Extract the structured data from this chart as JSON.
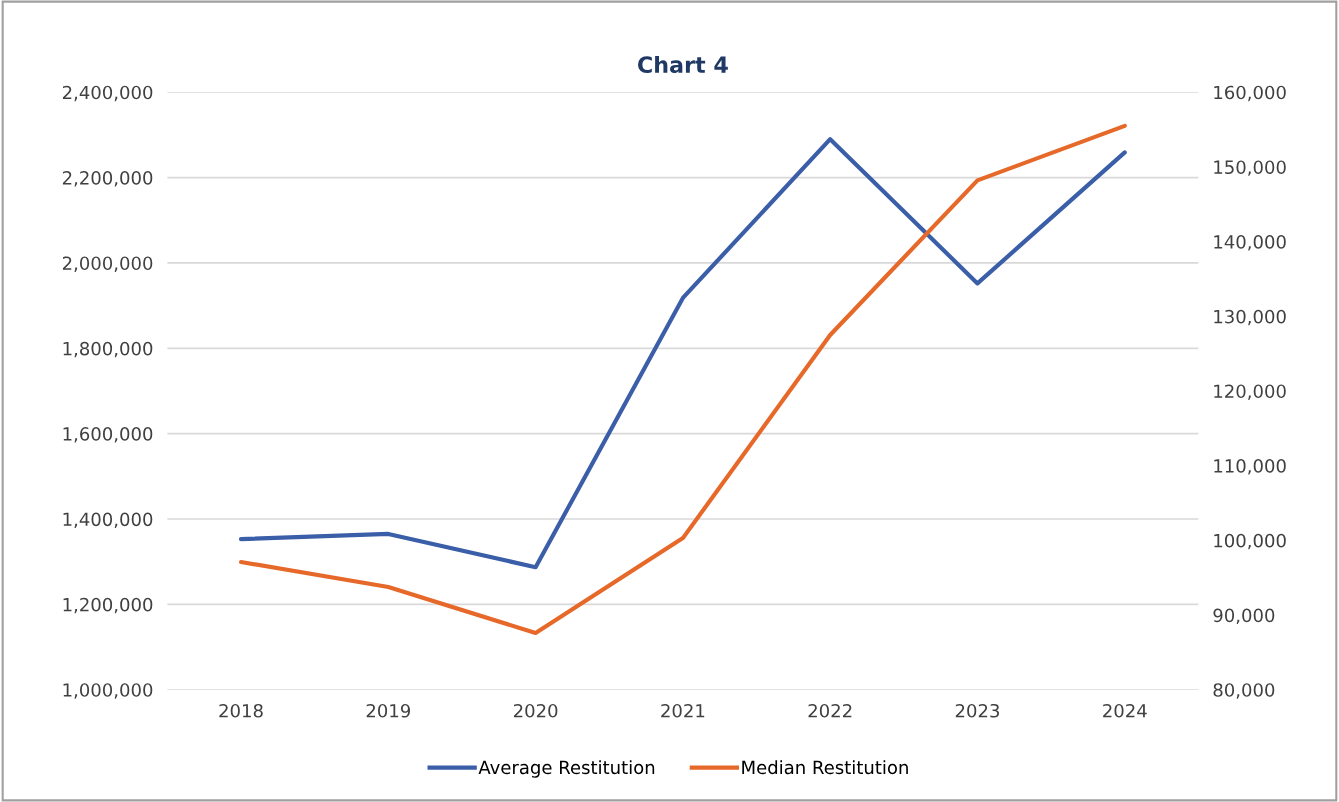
{
  "chart_data": {
    "type": "line",
    "title": "Chart 4",
    "categories": [
      "2018",
      "2019",
      "2020",
      "2021",
      "2022",
      "2023",
      "2024"
    ],
    "series": [
      {
        "name": "Average Restitution",
        "color": "#3b5ea8",
        "values": [
          1353000,
          1365000,
          1287000,
          1918000,
          2290000,
          1952000,
          2259000
        ]
      },
      {
        "name": "Median Restitution",
        "color": "#e6692a",
        "axis": "y2",
        "values": [
          97100,
          93750,
          87600,
          100300,
          127500,
          148200,
          155500
        ]
      }
    ],
    "ylim": [
      1000000,
      2400000
    ],
    "yticks": [
      {
        "value": 1000000,
        "label": "1,000,000"
      },
      {
        "value": 1200000,
        "label": "1,200,000"
      },
      {
        "value": 1400000,
        "label": "1,400,000"
      },
      {
        "value": 1600000,
        "label": "1,600,000"
      },
      {
        "value": 1800000,
        "label": "1,800,000"
      },
      {
        "value": 2000000,
        "label": "2,000,000"
      },
      {
        "value": 2200000,
        "label": "2,200,000"
      },
      {
        "value": 2400000,
        "label": "2,400,000"
      }
    ],
    "y2lim": [
      80000,
      160000
    ],
    "y2ticks": [
      {
        "value": 80000,
        "label": "80,000"
      },
      {
        "value": 90000,
        "label": "90,000"
      },
      {
        "value": 100000,
        "label": "100,000"
      },
      {
        "value": 110000,
        "label": "110,000"
      },
      {
        "value": 120000,
        "label": "120,000"
      },
      {
        "value": 130000,
        "label": "130,000"
      },
      {
        "value": 140000,
        "label": "140,000"
      },
      {
        "value": 150000,
        "label": "150,000"
      },
      {
        "value": 160000,
        "label": "160,000"
      }
    ],
    "grid": "y",
    "legend": "bottom",
    "marker": "none",
    "line_style": "solid"
  }
}
